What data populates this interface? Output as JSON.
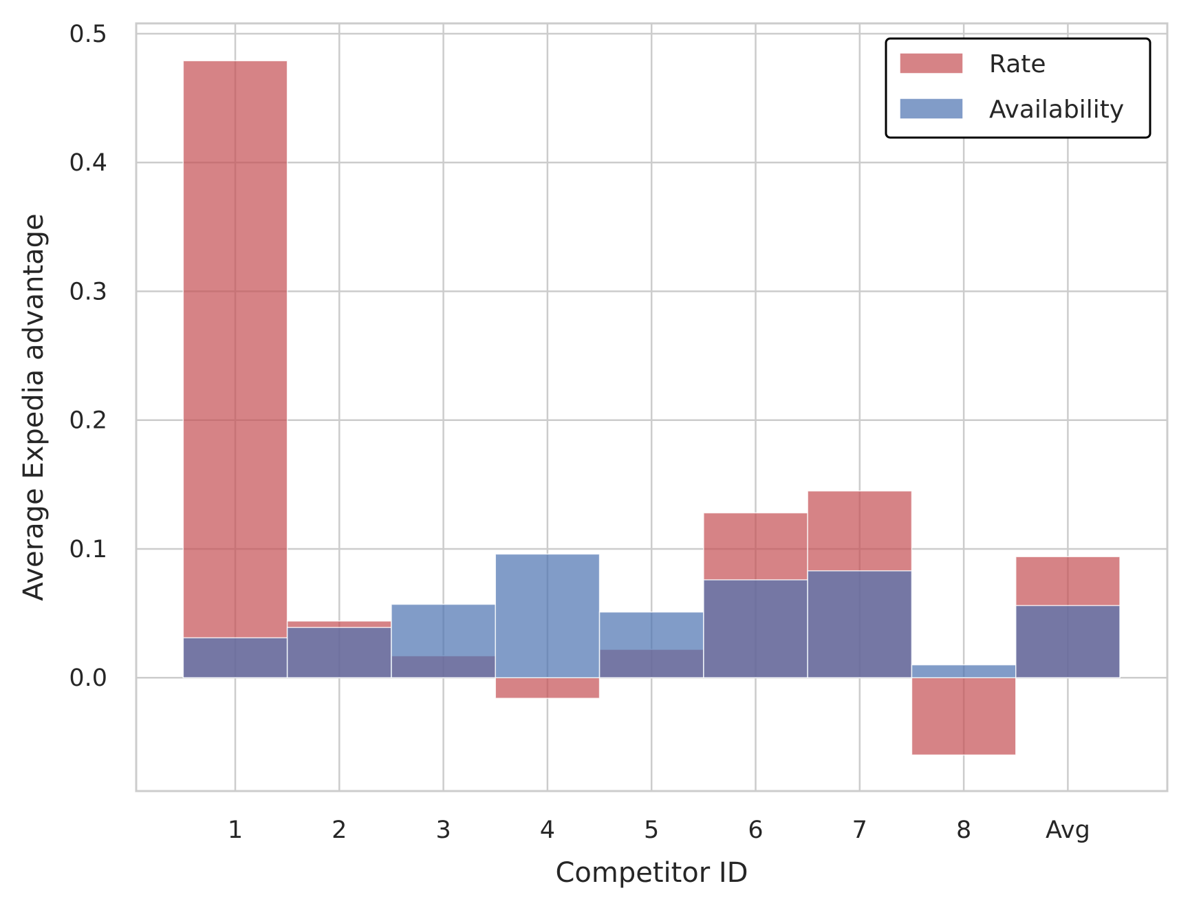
{
  "chart_data": {
    "type": "bar",
    "title": "",
    "xlabel": "Competitor ID",
    "ylabel": "Average Expedia advantage",
    "categories": [
      "1",
      "2",
      "3",
      "4",
      "5",
      "6",
      "7",
      "8",
      "Avg"
    ],
    "series": [
      {
        "name": "Rate",
        "color": "#c44e52",
        "values": [
          0.479,
          0.044,
          0.017,
          -0.016,
          0.022,
          0.128,
          0.145,
          -0.06,
          0.094
        ]
      },
      {
        "name": "Availability",
        "color": "#4c72b0",
        "values": [
          0.031,
          0.039,
          0.057,
          0.096,
          0.051,
          0.076,
          0.083,
          0.01,
          0.056
        ]
      }
    ],
    "ylim": [
      -0.088,
      0.508
    ],
    "yticks": [
      "0.0",
      "0.1",
      "0.2",
      "0.3",
      "0.4",
      "0.5"
    ],
    "grid": true,
    "legend_position": "top-right"
  }
}
